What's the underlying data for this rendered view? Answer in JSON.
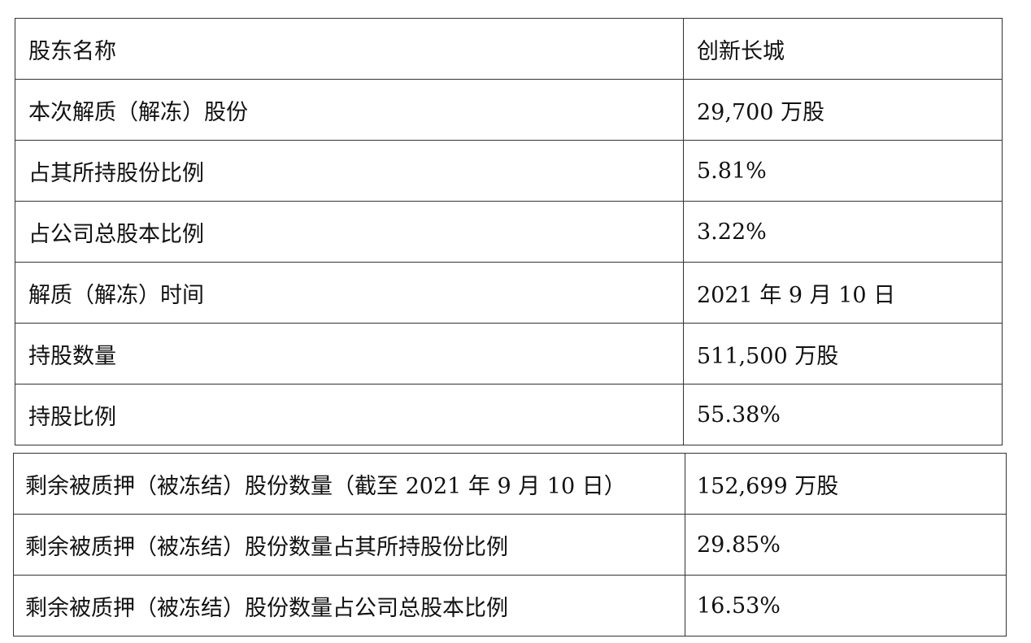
{
  "table1": {
    "rows": [
      [
        "股东名称",
        "创新长城"
      ],
      [
        "本次解质（解冻）股份",
        "29,700 万股"
      ],
      [
        "占其所持股份比例",
        "5.81%"
      ],
      [
        "占公司总股本比例",
        "3.22%"
      ],
      [
        "解质（解冻）时间",
        "2021 年 9 月 10 日"
      ],
      [
        "持股数量",
        "511,500 万股"
      ],
      [
        "持股比例",
        "55.38%"
      ]
    ]
  },
  "table2": {
    "rows": [
      [
        "剩余被质押（被冻结）股份数量（截至 2021 年 9 月 10 日）",
        "152,699 万股"
      ],
      [
        "剩余被质押（被冻结）股份数量占其所持股份比例",
        "29.85%"
      ],
      [
        "剩余被质押（被冻结）股份数量占公司总股本比例",
        "16.53%"
      ]
    ]
  }
}
